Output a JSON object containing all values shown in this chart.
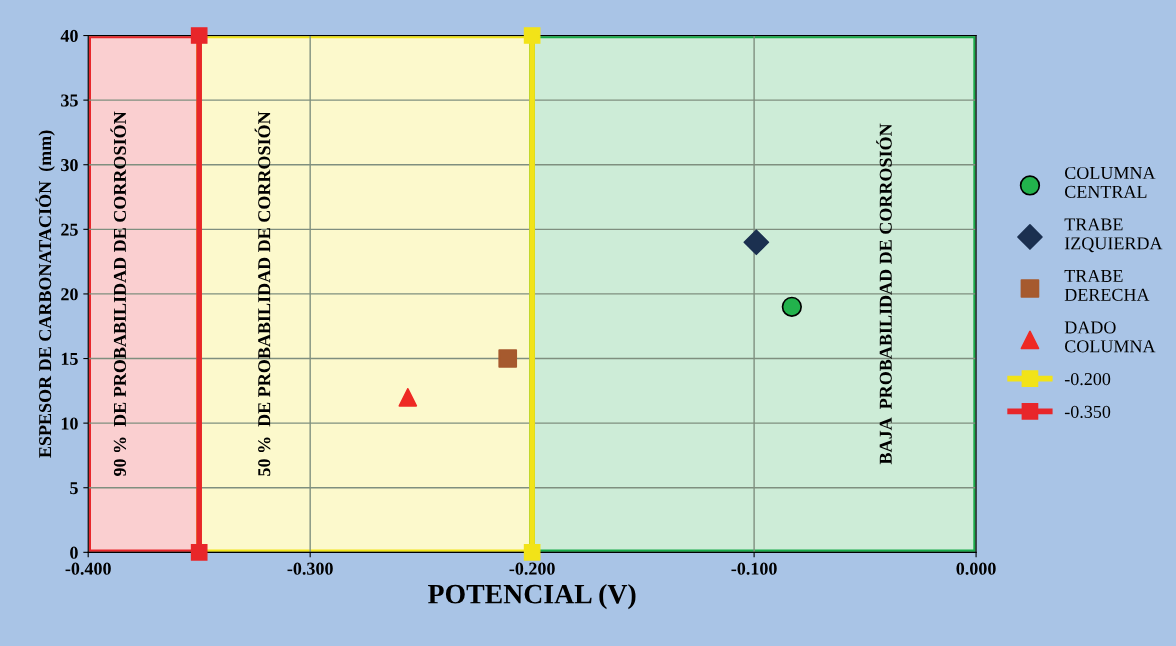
{
  "chart_data": {
    "type": "scatter",
    "xlabel": "POTENCIAL (V)",
    "ylabel": "ESPESOR DE CARBONATACIÓN  (mm)",
    "xlim": [
      -0.4,
      0.0
    ],
    "xticks": [
      {
        "value": -0.4,
        "label": "-0.400"
      },
      {
        "value": -0.3,
        "label": "-0.300"
      },
      {
        "value": -0.2,
        "label": "-0.200"
      },
      {
        "value": -0.1,
        "label": "-0.100"
      },
      {
        "value": 0.0,
        "label": "0.000"
      }
    ],
    "ylim": [
      0,
      40
    ],
    "yticks": [
      0,
      5,
      10,
      15,
      20,
      25,
      30,
      35,
      40
    ],
    "grid": true,
    "legend": "right",
    "bands": [
      {
        "axis": "x",
        "from": -0.4,
        "to": -0.35,
        "label": "90 %  DE PROBABILIDAD DE CORROSIÓN",
        "color": "#e8262a"
      },
      {
        "axis": "x",
        "from": -0.35,
        "to": -0.2,
        "label": "50 %  DE PROBABILIDAD DE CORROSIÓN",
        "color": "#f2e318"
      },
      {
        "axis": "x",
        "from": -0.2,
        "to": 0.0,
        "label": "BAJA  PROBABILIDAD DE CORROSIÓN",
        "color": "#1aaa4a"
      }
    ],
    "series": [
      {
        "name": "COLUMNA\nCENTRAL",
        "marker": "circle",
        "color": "#22b24c",
        "x": [
          -0.083
        ],
        "values": [
          19
        ]
      },
      {
        "name": "TRABE\nIZQUIERDA",
        "marker": "diamond",
        "color": "#1b3050",
        "x": [
          -0.099
        ],
        "values": [
          24
        ]
      },
      {
        "name": "TRABE\nDERECHA",
        "marker": "square",
        "color": "#a65a2e",
        "x": [
          -0.211
        ],
        "values": [
          15
        ]
      },
      {
        "name": "DADO\nCOLUMNA",
        "marker": "triangle",
        "color": "#ee2a24",
        "x": [
          -0.256
        ],
        "values": [
          12
        ]
      },
      {
        "name": "-0.200",
        "type": "line",
        "marker": "square",
        "color": "#f2e318",
        "x": [
          -0.2,
          -0.2
        ],
        "values": [
          0,
          40
        ]
      },
      {
        "name": "-0.350",
        "type": "line",
        "marker": "square",
        "color": "#e8262a",
        "x": [
          -0.35,
          -0.35
        ],
        "values": [
          0,
          40
        ]
      }
    ]
  }
}
